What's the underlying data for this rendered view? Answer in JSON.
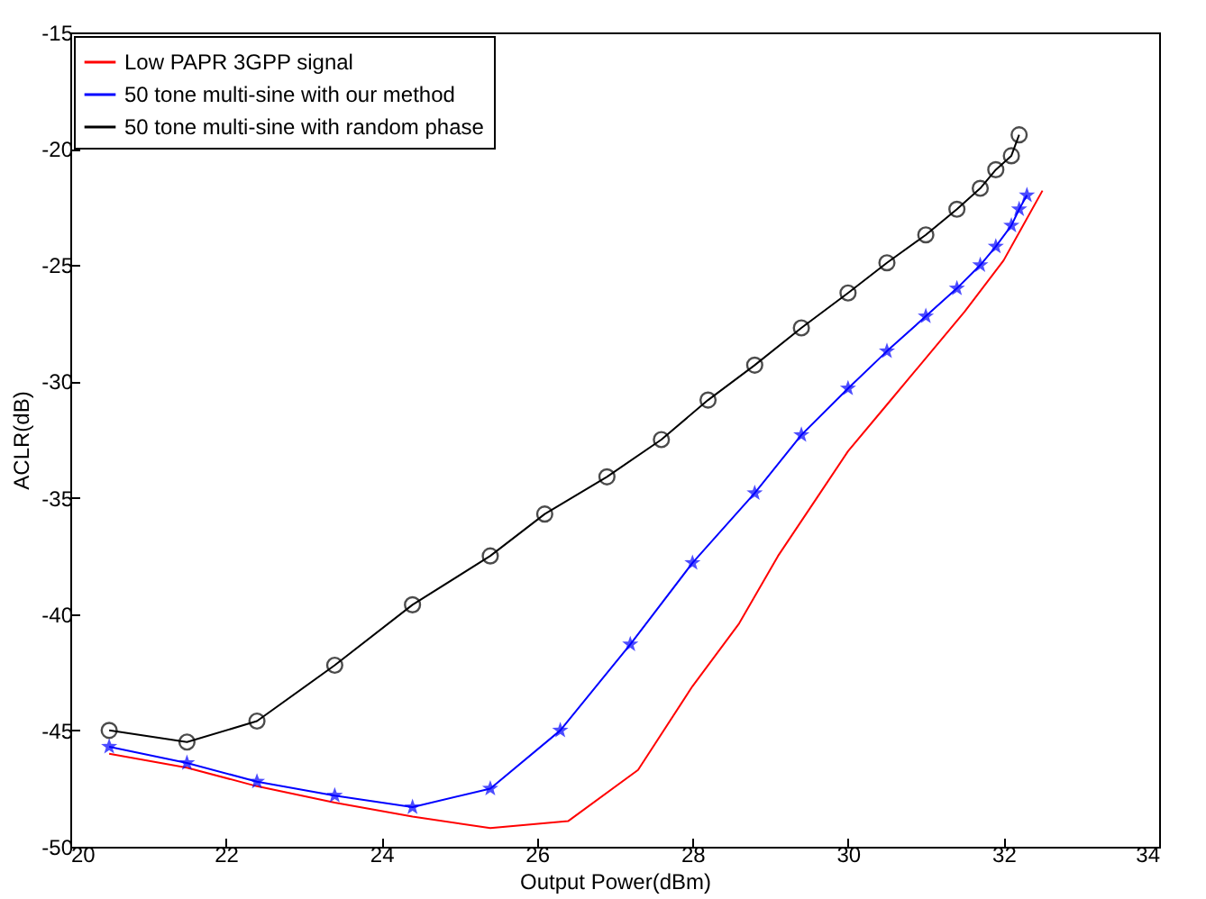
{
  "chart_data": {
    "type": "line",
    "xlabel": "Output Power(dBm)",
    "ylabel": "ACLR(dB)",
    "xlim": [
      20,
      34
    ],
    "xticks": [
      20,
      22,
      24,
      26,
      28,
      30,
      32,
      34
    ],
    "ylim": [
      -50,
      -15
    ],
    "yticks": [
      -50,
      -45,
      -40,
      -35,
      -30,
      -25,
      -20,
      -15
    ],
    "grid": false,
    "legend": "top left",
    "series": [
      {
        "name": "Low PAPR 3GPP signal",
        "color": "#ff0000",
        "marker": "none",
        "x": [
          20.5,
          21.5,
          22.4,
          23.4,
          24.4,
          25.4,
          26.4,
          27.3,
          28,
          28.6,
          29.1,
          29.6,
          30,
          30.5,
          31,
          31.5,
          32,
          32.5
        ],
        "values": [
          -46,
          -46.6,
          -47.4,
          -48.1,
          -48.7,
          -49.2,
          -48.9,
          -46.7,
          -43.1,
          -40.4,
          -37.5,
          -35,
          -33,
          -31,
          -29,
          -27,
          -24.8,
          -21.8
        ]
      },
      {
        "name": "50 tone multi-sine with our method",
        "color": "#0000ff",
        "marker": "star",
        "x": [
          20.5,
          21.5,
          22.4,
          23.4,
          24.4,
          25.4,
          26.3,
          27.2,
          28,
          28.8,
          29.4,
          30,
          30.5,
          31,
          31.4,
          31.7,
          31.9,
          32.1,
          32.2,
          32.3
        ],
        "values": [
          -45.7,
          -46.4,
          -47.2,
          -47.8,
          -48.3,
          -47.5,
          -45,
          -41.3,
          -37.8,
          -34.8,
          -32.3,
          -30.3,
          -28.7,
          -27.2,
          -26,
          -25,
          -24.2,
          -23.3,
          -22.6,
          -22
        ]
      },
      {
        "name": "50 tone multi-sine with random phase",
        "color": "#000000",
        "marker": "circle",
        "x": [
          20.5,
          21.5,
          22.4,
          23.4,
          24.4,
          25.4,
          26.1,
          26.9,
          27.6,
          28.2,
          28.8,
          29.4,
          30,
          30.5,
          31,
          31.4,
          31.7,
          31.9,
          32.1,
          32.2
        ],
        "values": [
          -45,
          -45.5,
          -44.6,
          -42.2,
          -39.6,
          -37.5,
          -35.7,
          -34.1,
          -32.5,
          -30.8,
          -29.3,
          -27.7,
          -26.2,
          -24.9,
          -23.7,
          -22.6,
          -21.7,
          -20.9,
          -20.3,
          -19.4
        ]
      }
    ]
  }
}
